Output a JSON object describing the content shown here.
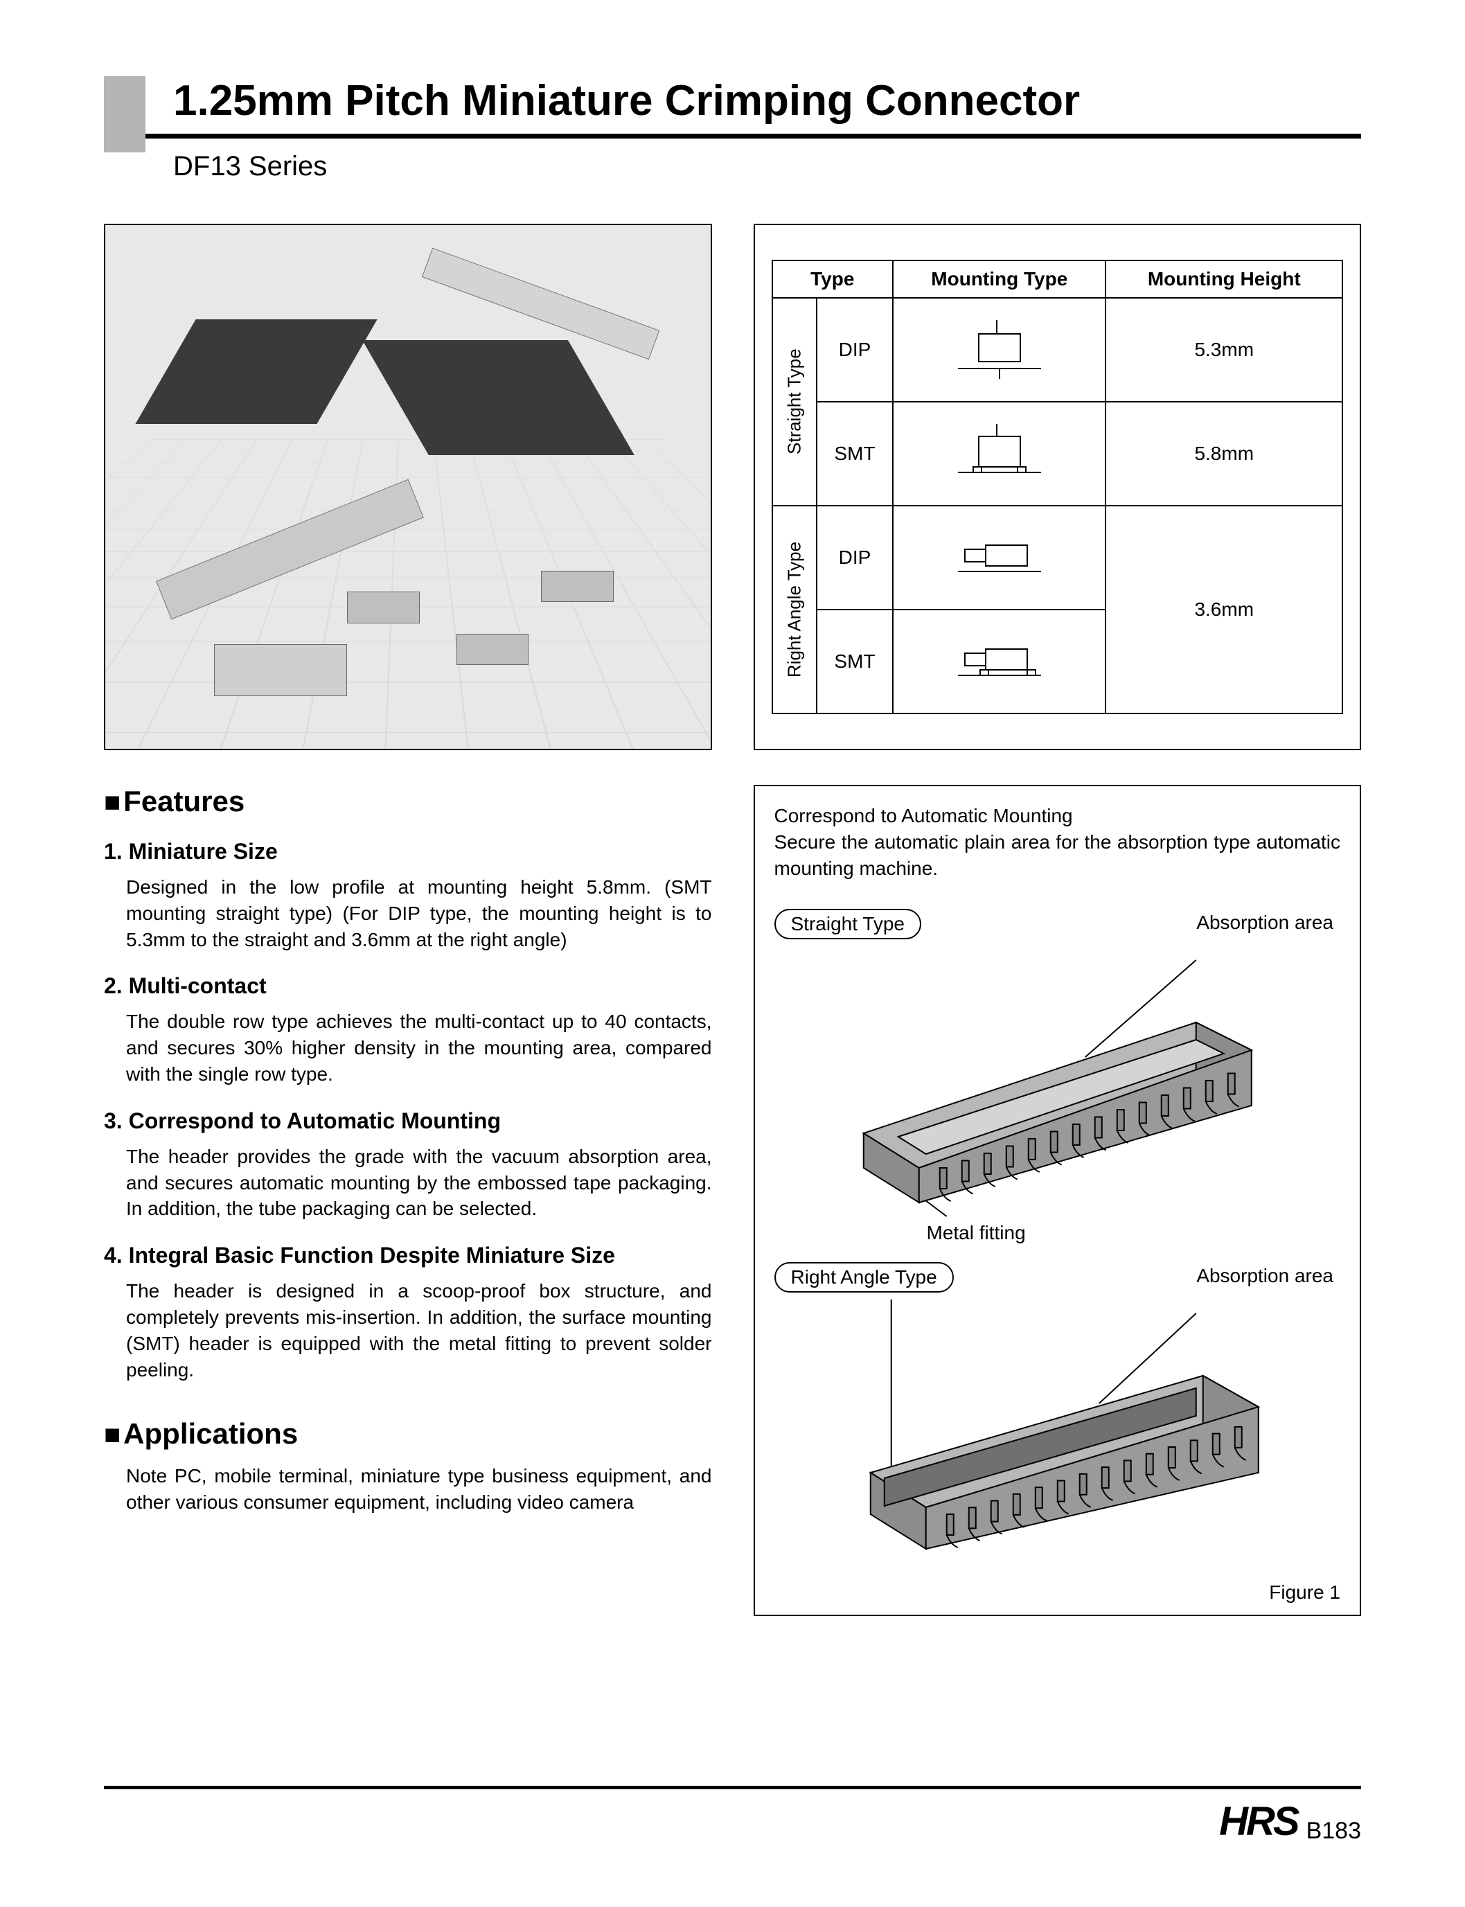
{
  "header": {
    "title": "1.25mm Pitch Miniature Crimping Connector",
    "series": "DF13 Series"
  },
  "spec_table": {
    "headers": [
      "Type",
      "Mounting Type",
      "Mounting Height"
    ],
    "groups": [
      {
        "group_label": "Straight Type",
        "rows": [
          {
            "type": "DIP",
            "height": "5.3mm"
          },
          {
            "type": "SMT",
            "height": "5.8mm"
          }
        ]
      },
      {
        "group_label": "Right Angle Type",
        "merged_height": "3.6mm",
        "rows": [
          {
            "type": "DIP"
          },
          {
            "type": "SMT"
          }
        ]
      }
    ]
  },
  "features": {
    "heading": "Features",
    "items": [
      {
        "title": "1. Miniature Size",
        "body": "Designed in the low profile at mounting height 5.8mm. (SMT mounting straight type)\n(For DIP type, the mounting height is to 5.3mm to the straight and 3.6mm at the right angle)"
      },
      {
        "title": "2. Multi-contact",
        "body": "The double row type achieves the multi-contact up to 40 contacts, and secures 30% higher density in the mounting area, compared with the single row type."
      },
      {
        "title": "3. Correspond to Automatic Mounting",
        "body": "The header provides the grade with the vacuum absorption area, and secures automatic mounting by the embossed tape packaging.\nIn addition, the tube packaging can be selected."
      },
      {
        "title": "4. Integral Basic Function Despite Miniature Size",
        "body": "The header is designed in a scoop-proof box structure, and completely prevents mis-insertion.\nIn addition, the surface mounting (SMT) header is equipped with the metal fitting to prevent solder peeling."
      }
    ]
  },
  "applications": {
    "heading": "Applications",
    "body": "Note PC, mobile terminal, miniature type business equipment, and other various consumer equipment, including video camera"
  },
  "diagram": {
    "intro_line1": "Correspond to Automatic Mounting",
    "intro_line2": "Secure the automatic plain area for the absorption type automatic mounting machine.",
    "pill_straight": "Straight Type",
    "pill_right": "Right Angle Type",
    "label_absorption": "Absorption area",
    "label_metal": "Metal fitting",
    "figure": "Figure 1",
    "colors": {
      "body": "#b8b8b8",
      "body_dark": "#8c8c8c",
      "pin": "#888888",
      "outline": "#000000"
    }
  },
  "footer": {
    "logo": "HRS",
    "page": "B183"
  }
}
